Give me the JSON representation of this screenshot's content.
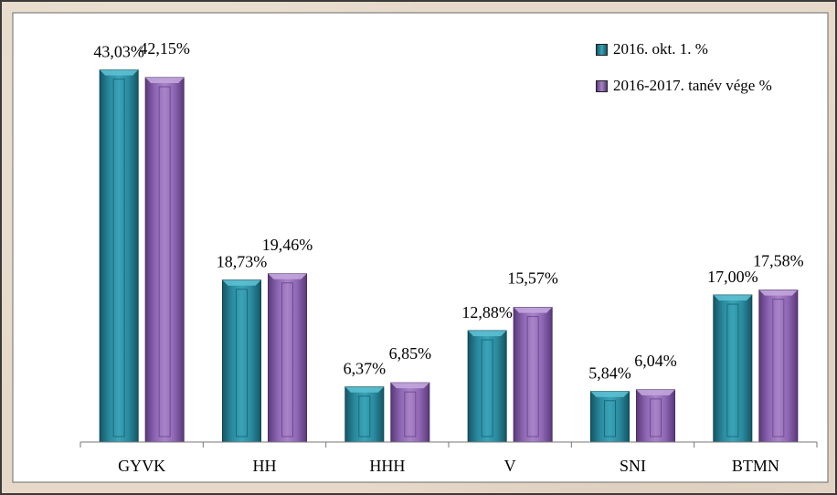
{
  "chart_data": {
    "type": "bar",
    "categories": [
      "GYVK",
      "HH",
      "HHH",
      "V",
      "SNI",
      "BTMN"
    ],
    "series": [
      {
        "name": "2016. okt. 1. %",
        "color": "#2a8a9e",
        "values": [
          43.03,
          18.73,
          6.37,
          12.88,
          5.84,
          17.0
        ],
        "labels": [
          "43,03%",
          "18,73%",
          "6,37%",
          "12,88%",
          "5,84%",
          "17,00%"
        ]
      },
      {
        "name": "2016-2017. tanév vége %",
        "color": "#8e66b4",
        "values": [
          42.15,
          19.46,
          6.85,
          15.57,
          6.04,
          17.58
        ],
        "labels": [
          "42,15%",
          "19,46%",
          "6,85%",
          "15,57%",
          "6,04%",
          "17,58%"
        ]
      }
    ],
    "ylim": [
      0,
      45
    ],
    "grid": false,
    "legend_position": "top-right"
  }
}
